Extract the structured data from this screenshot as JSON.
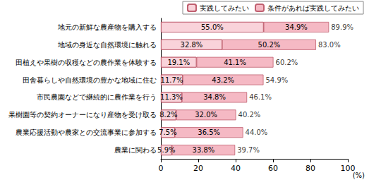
{
  "chart_data": {
    "type": "bar",
    "orientation": "horizontal",
    "stacked": true,
    "data_labels": true,
    "grid": false,
    "legend": "upper right",
    "categories": [
      "地元の新鮮な農産物を購入する",
      "地域の身近な自然環境に触れる",
      "田植えや果樹の収穫などの農作業を体験する",
      "田舎暮らしや自然環境の豊かな地域に住む",
      "市民農園などで継続的に農作業を行う",
      "果樹園等の契約オーナーになり産物を受け取る",
      "農業応援活動や農家との交流事業に参加する",
      "農業に関わる"
    ],
    "series": [
      {
        "name": "実践してみたい",
        "color": "#f9d3da",
        "marker": "dots",
        "values": [
          55.0,
          32.8,
          19.1,
          11.7,
          11.3,
          8.2,
          7.5,
          5.9
        ],
        "value_labels": [
          "55.0%",
          "32.8%",
          "19.1%",
          "11.7%",
          "11.3%",
          "8.2%",
          "7.5%",
          "5.9%"
        ]
      },
      {
        "name": "条件があれば実践してみたい",
        "color": "#f5b9c4",
        "values": [
          34.9,
          50.2,
          41.1,
          43.2,
          34.8,
          32.0,
          36.5,
          33.8
        ],
        "value_labels": [
          "34.9%",
          "50.2%",
          "41.1%",
          "43.2%",
          "34.8%",
          "32.0%",
          "36.5%",
          "33.8%"
        ]
      }
    ],
    "totals": [
      89.9,
      83.0,
      60.2,
      54.9,
      46.1,
      40.2,
      44.0,
      39.7
    ],
    "total_labels": [
      "89.9%",
      "83.0%",
      "60.2%",
      "54.9%",
      "46.1%",
      "40.2%",
      "44.0%",
      "39.7%"
    ],
    "xlabel": "(%)",
    "xlim": [
      0,
      100
    ],
    "xticks": [
      0,
      20,
      40,
      60,
      80,
      100
    ]
  }
}
